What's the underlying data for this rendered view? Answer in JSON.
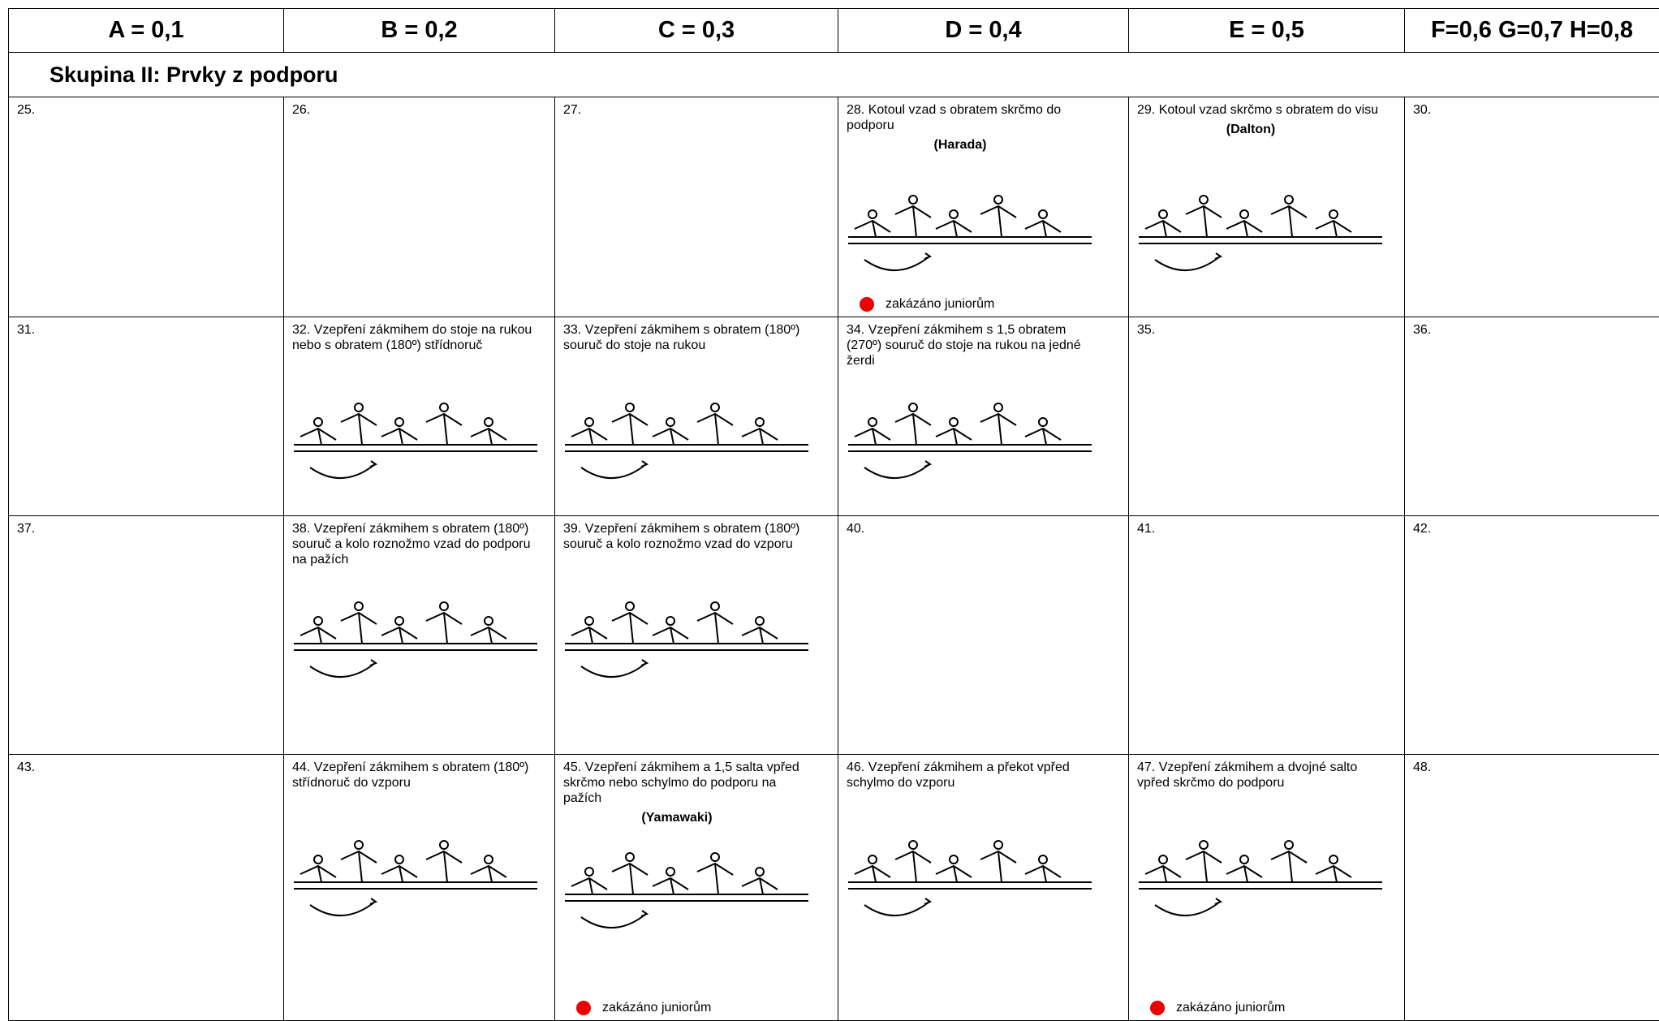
{
  "header": {
    "columns": [
      "A = 0,1",
      "B = 0,2",
      "C = 0,3",
      "D = 0,4",
      "E = 0,5",
      "F=0,6 G=0,7 H=0,8"
    ]
  },
  "group_title": "Skupina II: Prvky z podporu",
  "rows": [
    [
      {
        "text": "25."
      },
      {
        "text": "26."
      },
      {
        "text": "27."
      },
      {
        "text": "28. Kotoul vzad s obratem skrčmo do podporu",
        "name": "(Harada)",
        "note": "zakázáno juniorům"
      },
      {
        "text": "29. Kotoul vzad skrčmo s obratem do visu",
        "name": "(Dalton)"
      },
      {
        "text": "30."
      }
    ],
    [
      {
        "text": "31."
      },
      {
        "text": "32. Vzepření zákmihem do stoje na rukou nebo s obratem (180º) střídnoruč"
      },
      {
        "text": "33. Vzepření zákmihem s obratem (180º) souruč do stoje na rukou"
      },
      {
        "text": "34. Vzepření zákmihem s 1,5 obratem (270º) souruč do stoje na rukou na jedné žerdi"
      },
      {
        "text": "35."
      },
      {
        "text": "36."
      }
    ],
    [
      {
        "text": "37."
      },
      {
        "text": "38. Vzepření zákmihem s obratem (180º) souruč a kolo roznožmo vzad do podporu na pažích"
      },
      {
        "text": "39. Vzepření zákmihem s obratem (180º) souruč a kolo roznožmo vzad do vzporu"
      },
      {
        "text": "40."
      },
      {
        "text": "41."
      },
      {
        "text": "42."
      }
    ],
    [
      {
        "text": "43."
      },
      {
        "text": "44. Vzepření zákmihem s obratem (180º) střídnoruč do vzporu"
      },
      {
        "text": "45. Vzepření zákmihem a 1,5 salta vpřed skrčmo nebo schylmo do podporu na pažích",
        "name": "(Yamawaki)",
        "note": "zakázáno juniorům"
      },
      {
        "text": "46. Vzepření zákmihem a překot vpřed schylmo do vzporu"
      },
      {
        "text": "47. Vzepření zákmihem a dvojné salto vpřed skrčmo do podporu",
        "note": "zakázáno juniorům"
      },
      {
        "text": "48."
      }
    ]
  ]
}
